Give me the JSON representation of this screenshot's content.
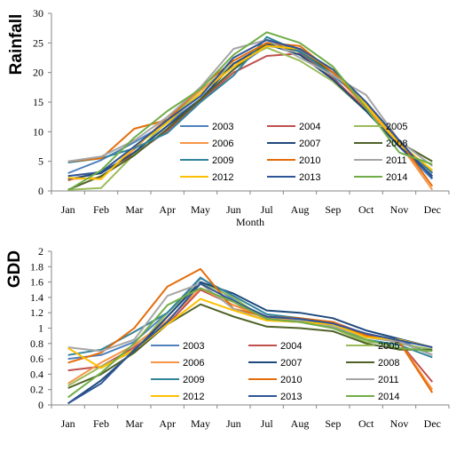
{
  "chart_data": [
    {
      "type": "line",
      "ylabel": "Rainfall",
      "xlabel": "Month",
      "categories": [
        "Jan",
        "Feb",
        "Mar",
        "Apr",
        "May",
        "Jun",
        "Jul",
        "Aug",
        "Sep",
        "Oct",
        "Nov",
        "Dec"
      ],
      "ylim": [
        0,
        30
      ],
      "yticks": [
        "0",
        "5",
        "10",
        "15",
        "20",
        "25",
        "30"
      ],
      "grid": false,
      "legend": "bottom-center, inside",
      "series": [
        {
          "name": "2003",
          "color": "#4F81BD",
          "values": [
            3.0,
            5.2,
            8.2,
            11.5,
            15.5,
            20.5,
            24.5,
            23.8,
            19.2,
            13.5,
            7.5,
            2.0
          ]
        },
        {
          "name": "2004",
          "color": "#C0504D",
          "values": [
            1.8,
            3.2,
            6.2,
            10.2,
            15.2,
            20.0,
            22.8,
            23.2,
            19.0,
            13.8,
            7.8,
            3.0
          ]
        },
        {
          "name": "2005",
          "color": "#9BBB59",
          "values": [
            0.2,
            0.5,
            6.2,
            11.8,
            17.0,
            21.5,
            24.2,
            22.0,
            18.5,
            13.5,
            8.0,
            3.2
          ]
        },
        {
          "name": "2006",
          "color": "#F79646",
          "values": [
            2.0,
            2.2,
            7.0,
            12.5,
            17.0,
            21.0,
            25.0,
            24.0,
            20.0,
            14.0,
            8.0,
            0.2
          ]
        },
        {
          "name": "2007",
          "color": "#1F497D",
          "values": [
            2.0,
            3.0,
            6.5,
            11.0,
            15.5,
            21.5,
            24.8,
            23.0,
            18.8,
            13.5,
            7.5,
            2.5
          ]
        },
        {
          "name": "2008",
          "color": "#4F6228",
          "values": [
            0.2,
            2.5,
            6.0,
            10.5,
            15.5,
            20.5,
            25.0,
            23.5,
            20.0,
            14.5,
            8.2,
            5.0
          ]
        },
        {
          "name": "2009",
          "color": "#31859B",
          "values": [
            4.8,
            5.5,
            7.2,
            9.8,
            15.0,
            19.5,
            26.0,
            23.5,
            19.5,
            15.0,
            8.2,
            3.0
          ]
        },
        {
          "name": "2010",
          "color": "#E46C0A",
          "values": [
            5.0,
            5.5,
            10.5,
            12.0,
            17.5,
            22.0,
            25.0,
            24.5,
            20.0,
            14.5,
            8.5,
            0.8
          ]
        },
        {
          "name": "2011",
          "color": "#A5A5A5",
          "values": [
            5.0,
            5.8,
            8.5,
            12.5,
            17.5,
            24.0,
            25.5,
            22.5,
            19.5,
            16.2,
            8.5,
            4.2
          ]
        },
        {
          "name": "2012",
          "color": "#FFC000",
          "values": [
            2.2,
            2.0,
            7.5,
            11.5,
            16.5,
            21.0,
            24.5,
            24.0,
            20.5,
            14.5,
            8.0,
            3.5
          ]
        },
        {
          "name": "2013",
          "color": "#2E5597",
          "values": [
            2.5,
            3.2,
            7.5,
            12.0,
            16.0,
            22.5,
            25.5,
            24.0,
            20.5,
            15.0,
            8.5,
            2.2
          ]
        },
        {
          "name": "2014",
          "color": "#70AD47",
          "values": [
            0.1,
            3.5,
            9.0,
            13.5,
            17.2,
            23.0,
            26.8,
            25.0,
            21.0,
            14.0,
            6.5,
            4.5
          ]
        }
      ]
    },
    {
      "type": "line",
      "ylabel": "GDD",
      "xlabel": "",
      "categories": [
        "Jan",
        "Feb",
        "Mar",
        "Apr",
        "May",
        "Jun",
        "Jul",
        "Aug",
        "Sep",
        "Oct",
        "Nov",
        "Dec"
      ],
      "ylim": [
        0,
        2
      ],
      "yticks": [
        "0",
        "0.2",
        "0.4",
        "0.6",
        "0.8",
        "1",
        "1.2",
        "1.4",
        "1.6",
        "1.8",
        "2"
      ],
      "grid": false,
      "legend": "bottom-center, inside",
      "series": [
        {
          "name": "2003",
          "color": "#4F81BD",
          "values": [
            0.6,
            0.65,
            0.82,
            1.2,
            1.66,
            1.37,
            1.13,
            1.11,
            1.05,
            0.88,
            0.85,
            0.65
          ]
        },
        {
          "name": "2004",
          "color": "#C0504D",
          "values": [
            0.45,
            0.5,
            0.75,
            1.05,
            1.5,
            1.3,
            1.15,
            1.12,
            1.08,
            0.92,
            0.82,
            0.3
          ]
        },
        {
          "name": "2005",
          "color": "#9BBB59",
          "values": [
            0.25,
            0.5,
            0.7,
            1.2,
            1.6,
            1.4,
            1.1,
            1.08,
            1.0,
            0.82,
            0.8,
            0.72
          ]
        },
        {
          "name": "2006",
          "color": "#F79646",
          "values": [
            0.28,
            0.55,
            0.78,
            1.1,
            1.52,
            1.3,
            1.12,
            1.1,
            1.06,
            0.9,
            0.82,
            0.2
          ]
        },
        {
          "name": "2007",
          "color": "#1F497D",
          "values": [
            0.02,
            0.32,
            0.7,
            1.15,
            1.6,
            1.45,
            1.23,
            1.2,
            1.13,
            0.97,
            0.86,
            0.75
          ]
        },
        {
          "name": "2008",
          "color": "#4F6228",
          "values": [
            0.22,
            0.4,
            0.68,
            1.05,
            1.31,
            1.15,
            1.02,
            1.0,
            0.96,
            0.8,
            0.72,
            0.72
          ]
        },
        {
          "name": "2009",
          "color": "#31859B",
          "values": [
            0.65,
            0.72,
            0.95,
            1.2,
            1.65,
            1.42,
            1.18,
            1.13,
            1.02,
            0.85,
            0.78,
            0.62
          ]
        },
        {
          "name": "2010",
          "color": "#E46C0A",
          "values": [
            0.55,
            0.68,
            1.0,
            1.54,
            1.77,
            1.25,
            1.15,
            1.13,
            1.08,
            0.9,
            0.82,
            0.16
          ]
        },
        {
          "name": "2011",
          "color": "#A5A5A5",
          "values": [
            0.75,
            0.7,
            0.85,
            1.42,
            1.58,
            1.25,
            1.1,
            1.1,
            1.02,
            0.88,
            0.82,
            0.65
          ]
        },
        {
          "name": "2012",
          "color": "#FFC000",
          "values": [
            0.74,
            0.48,
            0.72,
            1.05,
            1.38,
            1.23,
            1.1,
            1.08,
            1.05,
            0.88,
            0.85,
            0.75
          ]
        },
        {
          "name": "2013",
          "color": "#2E5597",
          "values": [
            0.02,
            0.28,
            0.72,
            1.08,
            1.58,
            1.35,
            1.15,
            1.12,
            1.06,
            0.93,
            0.84,
            0.75
          ]
        },
        {
          "name": "2014",
          "color": "#70AD47",
          "values": [
            0.1,
            0.42,
            0.8,
            1.3,
            1.52,
            1.34,
            1.12,
            1.08,
            1.0,
            0.85,
            0.74,
            0.7
          ]
        }
      ]
    }
  ]
}
